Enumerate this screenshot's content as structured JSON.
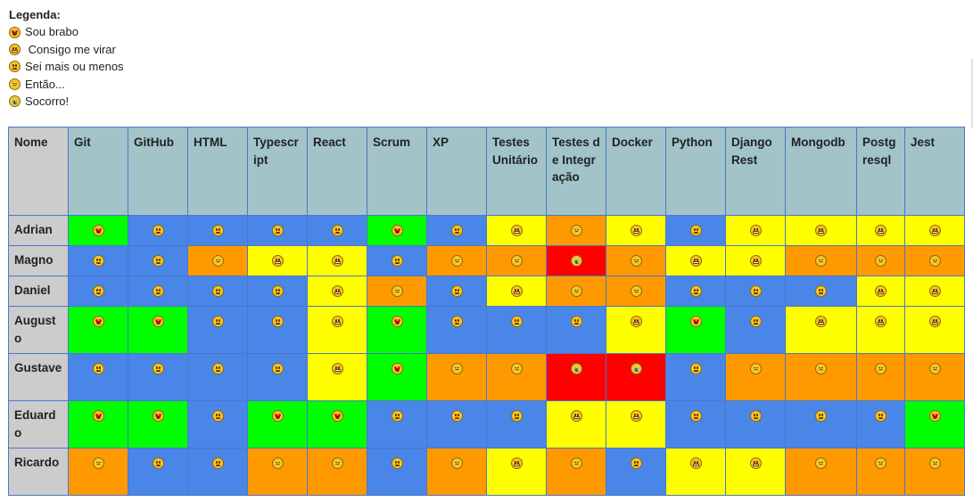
{
  "legend": {
    "title": "Legenda:",
    "items": [
      {
        "level": 5,
        "label": "Sou brabo",
        "icon": "star-struck-emoji-icon"
      },
      {
        "level": 4,
        "label": " Consigo me virar",
        "icon": "grinning-emoji-icon"
      },
      {
        "level": 3,
        "label": "Sei mais ou menos",
        "icon": "neutral-emoji-icon"
      },
      {
        "level": 2,
        "label": "Então...",
        "icon": "disappointed-emoji-icon"
      },
      {
        "level": 1,
        "label": "Socorro!",
        "icon": "crying-emoji-icon"
      }
    ]
  },
  "colors": {
    "level5": "#00ff00",
    "level4": "#ffff00",
    "level3": "#4a86e8",
    "level2": "#ff9900",
    "level1": "#ff0000",
    "header": "#a2c4c9",
    "name_column": "#cccccc"
  },
  "table": {
    "name_header": "Nome",
    "columns": [
      "Git",
      "GitHub",
      "HTML",
      "Typescript",
      "React",
      "Scrum",
      "XP",
      "Testes Unitário",
      "Testes de Integração",
      "Docker",
      "Python",
      "Django Rest",
      "Mongodb",
      "Postgresql",
      "Jest"
    ],
    "rows": [
      {
        "name": "Adrian",
        "levels": [
          5,
          3,
          3,
          3,
          3,
          5,
          3,
          4,
          2,
          4,
          3,
          4,
          4,
          4,
          4
        ]
      },
      {
        "name": "Magno",
        "levels": [
          3,
          3,
          2,
          4,
          4,
          3,
          2,
          2,
          1,
          2,
          4,
          4,
          2,
          2,
          2
        ]
      },
      {
        "name": "Daniel",
        "levels": [
          3,
          3,
          3,
          3,
          4,
          2,
          3,
          4,
          2,
          2,
          3,
          3,
          3,
          4,
          4
        ]
      },
      {
        "name": "Augusto",
        "levels": [
          5,
          5,
          3,
          3,
          4,
          5,
          3,
          3,
          3,
          4,
          5,
          3,
          4,
          4,
          4
        ]
      },
      {
        "name": "Gustave",
        "levels": [
          3,
          3,
          3,
          3,
          4,
          5,
          2,
          2,
          1,
          1,
          3,
          2,
          2,
          2,
          2
        ]
      },
      {
        "name": "Eduardo",
        "levels": [
          5,
          5,
          3,
          5,
          5,
          3,
          3,
          3,
          4,
          4,
          3,
          3,
          3,
          3,
          5
        ]
      },
      {
        "name": "Ricardo",
        "levels": [
          2,
          3,
          3,
          2,
          2,
          3,
          2,
          4,
          2,
          3,
          4,
          4,
          2,
          2,
          2
        ]
      }
    ]
  }
}
